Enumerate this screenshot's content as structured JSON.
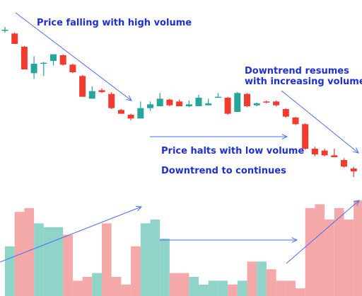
{
  "annotations": {
    "falling": "Price falling with high volume",
    "halts": "Price halts with low volume",
    "continues": "Downtrend to continues",
    "resumes_1": "Downtrend resumes",
    "resumes_2": "with increasing volume"
  },
  "colors": {
    "up": "#26a69a",
    "down": "#f23b2f",
    "vol_up": "#8fd3c9",
    "vol_down": "#f4a8a8",
    "arrow": "#4a6cf7",
    "text": "#1f2fd6"
  },
  "chart_data": {
    "type": "candlestick",
    "price_chart": {
      "candles": [
        {
          "open": 100.0,
          "high": 101.5,
          "low": 98.5,
          "close": 100.0
        },
        {
          "open": 98.0,
          "high": 98.5,
          "low": 92.5,
          "close": 92.5
        },
        {
          "open": 91.0,
          "high": 91.5,
          "low": 79.0,
          "close": 79.0
        },
        {
          "open": 77.0,
          "high": 86.0,
          "low": 74.0,
          "close": 82.0
        },
        {
          "open": 82.5,
          "high": 83.0,
          "low": 75.5,
          "close": 82.5
        },
        {
          "open": 83.5,
          "high": 86.5,
          "low": 81.0,
          "close": 87.0
        },
        {
          "open": 86.5,
          "high": 87.0,
          "low": 81.0,
          "close": 81.5
        },
        {
          "open": 81.5,
          "high": 82.0,
          "low": 77.0,
          "close": 77.5
        },
        {
          "open": 75.5,
          "high": 76.0,
          "low": 64.5,
          "close": 64.5
        },
        {
          "open": 63.5,
          "high": 70.0,
          "low": 63.5,
          "close": 67.5
        },
        {
          "open": 68.0,
          "high": 69.0,
          "low": 66.5,
          "close": 67.0
        },
        {
          "open": 66.0,
          "high": 67.0,
          "low": 58.0,
          "close": 58.5
        },
        {
          "open": 57.5,
          "high": 58.0,
          "low": 55.5,
          "close": 55.5
        },
        {
          "open": 55.0,
          "high": 55.5,
          "low": 52.0,
          "close": 53.0
        },
        {
          "open": 53.0,
          "high": 62.0,
          "low": 53.0,
          "close": 58.5
        },
        {
          "open": 58.5,
          "high": 62.0,
          "low": 57.0,
          "close": 60.5
        },
        {
          "open": 59.5,
          "high": 66.5,
          "low": 59.5,
          "close": 63.5
        },
        {
          "open": 63.0,
          "high": 63.5,
          "low": 59.5,
          "close": 60.0
        },
        {
          "open": 62.0,
          "high": 63.0,
          "low": 59.5,
          "close": 59.5
        },
        {
          "open": 59.5,
          "high": 62.5,
          "low": 59.0,
          "close": 60.5
        },
        {
          "open": 59.5,
          "high": 65.5,
          "low": 59.5,
          "close": 64.0
        },
        {
          "open": 60.0,
          "high": 63.5,
          "low": 60.0,
          "close": 61.0
        },
        {
          "open": 64.5,
          "high": 66.5,
          "low": 64.0,
          "close": 64.5
        },
        {
          "open": 64.0,
          "high": 64.5,
          "low": 55.0,
          "close": 55.5
        },
        {
          "open": 56.5,
          "high": 67.0,
          "low": 56.5,
          "close": 66.5
        },
        {
          "open": 66.0,
          "high": 66.5,
          "low": 59.0,
          "close": 59.5
        },
        {
          "open": 60.0,
          "high": 61.5,
          "low": 59.5,
          "close": 61.0
        },
        {
          "open": 62.0,
          "high": 62.5,
          "low": 61.0,
          "close": 61.5
        },
        {
          "open": 62.0,
          "high": 62.5,
          "low": 59.5,
          "close": 60.0
        },
        {
          "open": 58.0,
          "high": 58.5,
          "low": 53.5,
          "close": 54.0
        },
        {
          "open": 53.5,
          "high": 54.0,
          "low": 49.5,
          "close": 50.0
        },
        {
          "open": 50.0,
          "high": 50.5,
          "low": 36.5,
          "close": 37.0
        },
        {
          "open": 37.0,
          "high": 38.0,
          "low": 33.0,
          "close": 34.0
        },
        {
          "open": 36.0,
          "high": 37.0,
          "low": 33.0,
          "close": 33.5
        },
        {
          "open": 33.5,
          "high": 37.0,
          "low": 32.5,
          "close": 32.5
        },
        {
          "open": 31.0,
          "high": 32.0,
          "low": 27.0,
          "close": 27.5
        },
        {
          "open": 26.5,
          "high": 27.5,
          "low": 22.0,
          "close": 25.0
        }
      ]
    },
    "volume_chart": {
      "values": [
        13,
        22,
        23,
        19,
        18,
        18,
        16,
        4,
        5,
        6,
        19,
        5,
        3,
        13,
        19,
        20,
        15,
        6,
        6,
        5,
        3,
        4,
        4,
        3,
        4,
        9,
        9,
        7,
        4,
        4,
        2,
        23,
        24,
        20,
        23,
        20,
        25
      ]
    }
  }
}
